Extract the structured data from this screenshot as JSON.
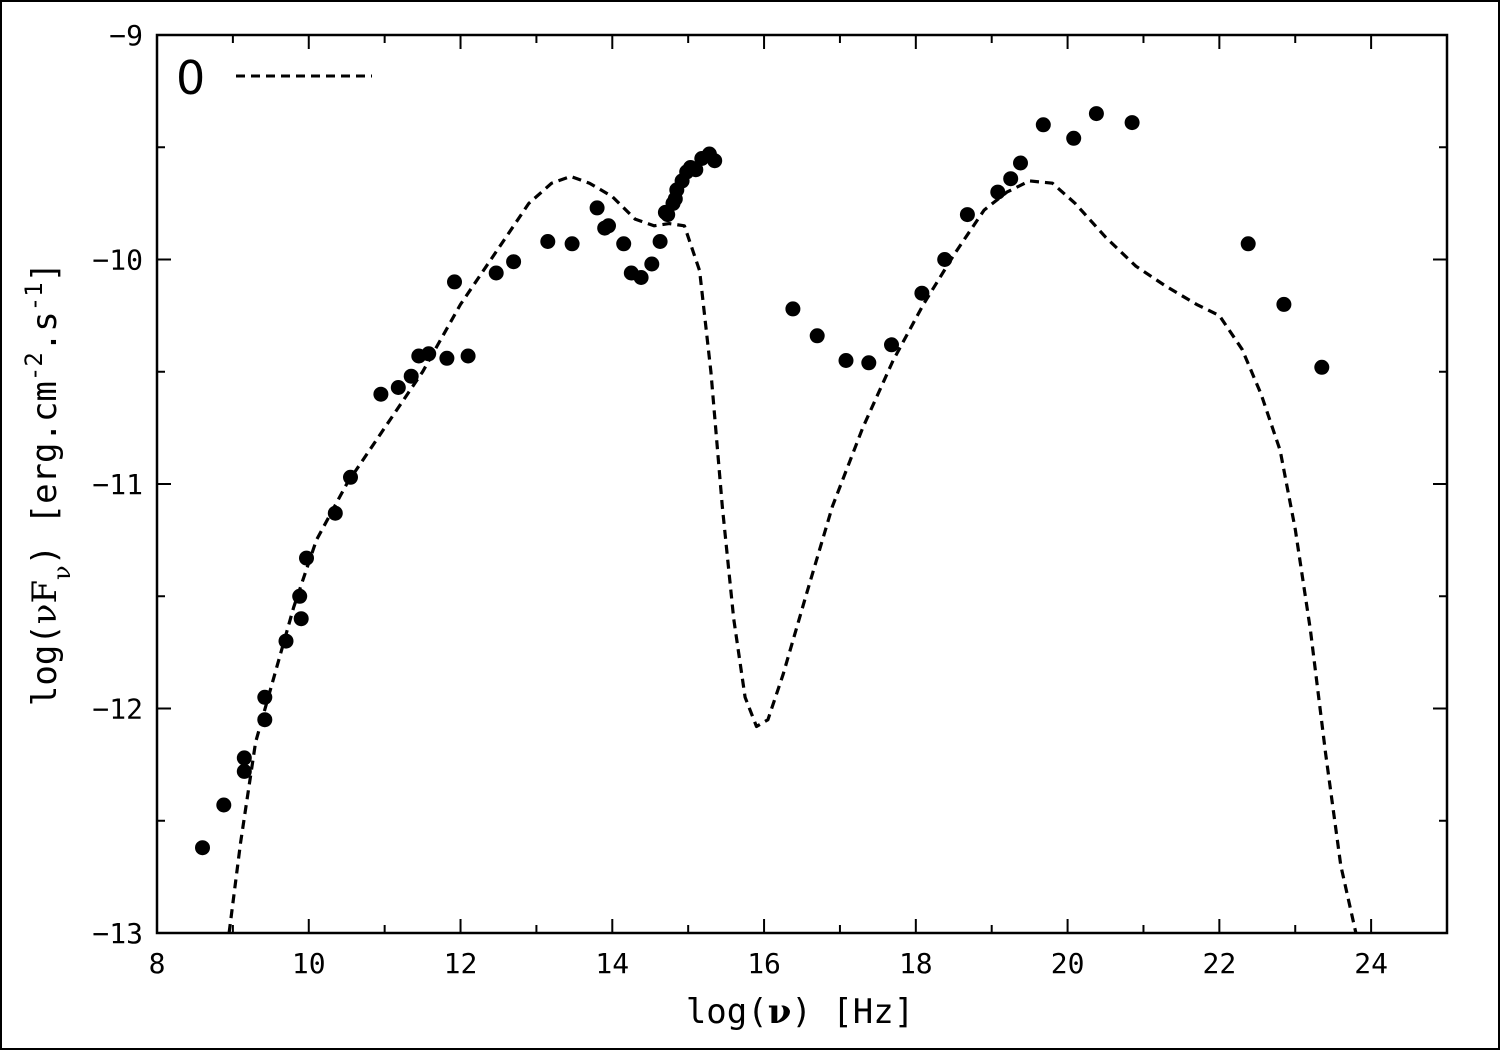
{
  "chart_data": {
    "type": "scatter",
    "xlabel_prefix": "log",
    "xlabel_symbol": "ν",
    "xlabel_unit": "[Hz]",
    "ylabel_prefix": "log",
    "ylabel_symbol": "νF",
    "ylabel_sub": "ν",
    "ylabel_unit_a": "[erg.cm",
    "ylabel_exp_a": "-2",
    "ylabel_unit_b": ".s",
    "ylabel_exp_b": "-1",
    "ylabel_unit_c": "]",
    "xlim": [
      8,
      25
    ],
    "ylim": [
      -13,
      -9
    ],
    "x_ticks": [
      8,
      10,
      12,
      14,
      16,
      18,
      20,
      22,
      24
    ],
    "x_tick_labels": [
      "8",
      "10",
      "12",
      "14",
      "16",
      "18",
      "20",
      "22",
      "24"
    ],
    "y_ticks": [
      -13,
      -12,
      -11,
      -10,
      -9
    ],
    "y_tick_labels": [
      "−13",
      "−12",
      "−11",
      "−10",
      "−9"
    ],
    "grid": false,
    "legend": {
      "label": "0",
      "style": "dashed",
      "position": "top-left"
    },
    "series": [
      {
        "style": "markers",
        "points": [
          [
            8.6,
            -12.62
          ],
          [
            8.88,
            -12.43
          ],
          [
            9.15,
            -12.22
          ],
          [
            9.15,
            -12.28
          ],
          [
            9.42,
            -11.95
          ],
          [
            9.42,
            -12.05
          ],
          [
            9.7,
            -11.7
          ],
          [
            9.88,
            -11.5
          ],
          [
            9.9,
            -11.6
          ],
          [
            9.97,
            -11.33
          ],
          [
            10.35,
            -11.13
          ],
          [
            10.55,
            -10.97
          ],
          [
            10.95,
            -10.6
          ],
          [
            11.18,
            -10.57
          ],
          [
            11.35,
            -10.52
          ],
          [
            11.45,
            -10.43
          ],
          [
            11.58,
            -10.42
          ],
          [
            11.82,
            -10.44
          ],
          [
            11.92,
            -10.1
          ],
          [
            12.1,
            -10.43
          ],
          [
            12.47,
            -10.06
          ],
          [
            12.7,
            -10.01
          ],
          [
            13.15,
            -9.92
          ],
          [
            13.47,
            -9.93
          ],
          [
            13.8,
            -9.77
          ],
          [
            13.9,
            -9.86
          ],
          [
            13.95,
            -9.85
          ],
          [
            14.15,
            -9.93
          ],
          [
            14.25,
            -10.06
          ],
          [
            14.38,
            -10.08
          ],
          [
            14.52,
            -10.02
          ],
          [
            14.63,
            -9.92
          ],
          [
            14.7,
            -9.79
          ],
          [
            14.73,
            -9.8
          ],
          [
            14.8,
            -9.75
          ],
          [
            14.83,
            -9.73
          ],
          [
            14.85,
            -9.69
          ],
          [
            14.92,
            -9.65
          ],
          [
            14.98,
            -9.61
          ],
          [
            15.03,
            -9.59
          ],
          [
            15.1,
            -9.6
          ],
          [
            15.18,
            -9.55
          ],
          [
            15.28,
            -9.53
          ],
          [
            15.35,
            -9.56
          ],
          [
            16.38,
            -10.22
          ],
          [
            16.7,
            -10.34
          ],
          [
            17.08,
            -10.45
          ],
          [
            17.38,
            -10.46
          ],
          [
            17.68,
            -10.38
          ],
          [
            18.08,
            -10.15
          ],
          [
            18.38,
            -10.0
          ],
          [
            18.68,
            -9.8
          ],
          [
            19.08,
            -9.7
          ],
          [
            19.25,
            -9.64
          ],
          [
            19.38,
            -9.57
          ],
          [
            19.68,
            -9.4
          ],
          [
            20.08,
            -9.46
          ],
          [
            20.38,
            -9.35
          ],
          [
            20.85,
            -9.39
          ],
          [
            22.38,
            -9.93
          ],
          [
            22.85,
            -10.2
          ],
          [
            23.35,
            -10.48
          ]
        ]
      },
      {
        "name": "0",
        "style": "dashed",
        "points": [
          [
            8.95,
            -13.0
          ],
          [
            9.1,
            -12.6
          ],
          [
            9.3,
            -12.15
          ],
          [
            9.55,
            -11.85
          ],
          [
            9.8,
            -11.55
          ],
          [
            10.1,
            -11.25
          ],
          [
            10.5,
            -11.0
          ],
          [
            11.0,
            -10.75
          ],
          [
            11.5,
            -10.5
          ],
          [
            12.0,
            -10.2
          ],
          [
            12.5,
            -9.95
          ],
          [
            12.9,
            -9.75
          ],
          [
            13.2,
            -9.66
          ],
          [
            13.45,
            -9.63
          ],
          [
            13.7,
            -9.66
          ],
          [
            14.0,
            -9.72
          ],
          [
            14.3,
            -9.82
          ],
          [
            14.55,
            -9.85
          ],
          [
            14.75,
            -9.84
          ],
          [
            14.95,
            -9.85
          ],
          [
            15.15,
            -10.05
          ],
          [
            15.3,
            -10.5
          ],
          [
            15.45,
            -11.1
          ],
          [
            15.6,
            -11.6
          ],
          [
            15.75,
            -11.95
          ],
          [
            15.9,
            -12.08
          ],
          [
            16.05,
            -12.05
          ],
          [
            16.25,
            -11.85
          ],
          [
            16.55,
            -11.5
          ],
          [
            16.9,
            -11.1
          ],
          [
            17.3,
            -10.75
          ],
          [
            17.7,
            -10.45
          ],
          [
            18.1,
            -10.2
          ],
          [
            18.5,
            -9.98
          ],
          [
            18.9,
            -9.78
          ],
          [
            19.2,
            -9.7
          ],
          [
            19.5,
            -9.65
          ],
          [
            19.8,
            -9.66
          ],
          [
            20.1,
            -9.75
          ],
          [
            20.5,
            -9.9
          ],
          [
            20.9,
            -10.03
          ],
          [
            21.3,
            -10.12
          ],
          [
            21.7,
            -10.2
          ],
          [
            22.0,
            -10.25
          ],
          [
            22.3,
            -10.4
          ],
          [
            22.55,
            -10.6
          ],
          [
            22.8,
            -10.85
          ],
          [
            23.0,
            -11.2
          ],
          [
            23.2,
            -11.65
          ],
          [
            23.4,
            -12.2
          ],
          [
            23.6,
            -12.7
          ],
          [
            23.8,
            -13.0
          ]
        ]
      }
    ]
  }
}
